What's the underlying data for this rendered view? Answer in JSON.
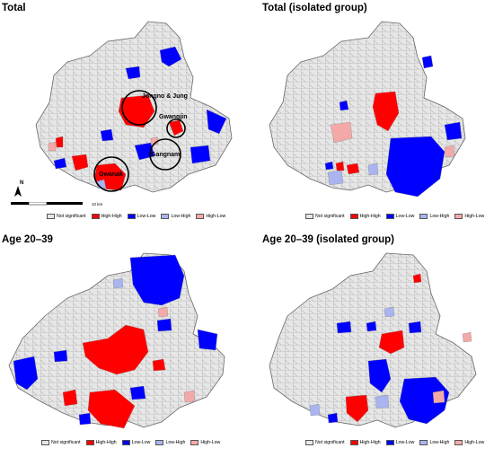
{
  "panels": [
    {
      "title": "Total"
    },
    {
      "title": "Total (isolated group)"
    },
    {
      "title": "Age 20–39"
    },
    {
      "title": "Age 20–39 (isolated group)"
    }
  ],
  "legend": [
    {
      "label": "Not significant",
      "color": "#e6e6e6"
    },
    {
      "label": "High-High",
      "color": "#ff0000"
    },
    {
      "label": "Low-Low",
      "color": "#0000ff"
    },
    {
      "label": "Low-High",
      "color": "#a9b4f0"
    },
    {
      "label": "High-Low",
      "color": "#f4a9a9"
    }
  ],
  "annotations": {
    "jongno": "Jongno & Jung",
    "gwangjin": "Gwangjin",
    "gangnam": "Gangnam",
    "gwanak": "Gwanak"
  },
  "scale": {
    "label": "10 km"
  },
  "north": {
    "label": "N"
  },
  "colors": {
    "not_significant": "#e6e6e6",
    "high_high": "#ff0000",
    "low_low": "#0000ff",
    "low_high": "#a9b4f0",
    "high_low": "#f4a9a9",
    "boundary": "#777777"
  }
}
